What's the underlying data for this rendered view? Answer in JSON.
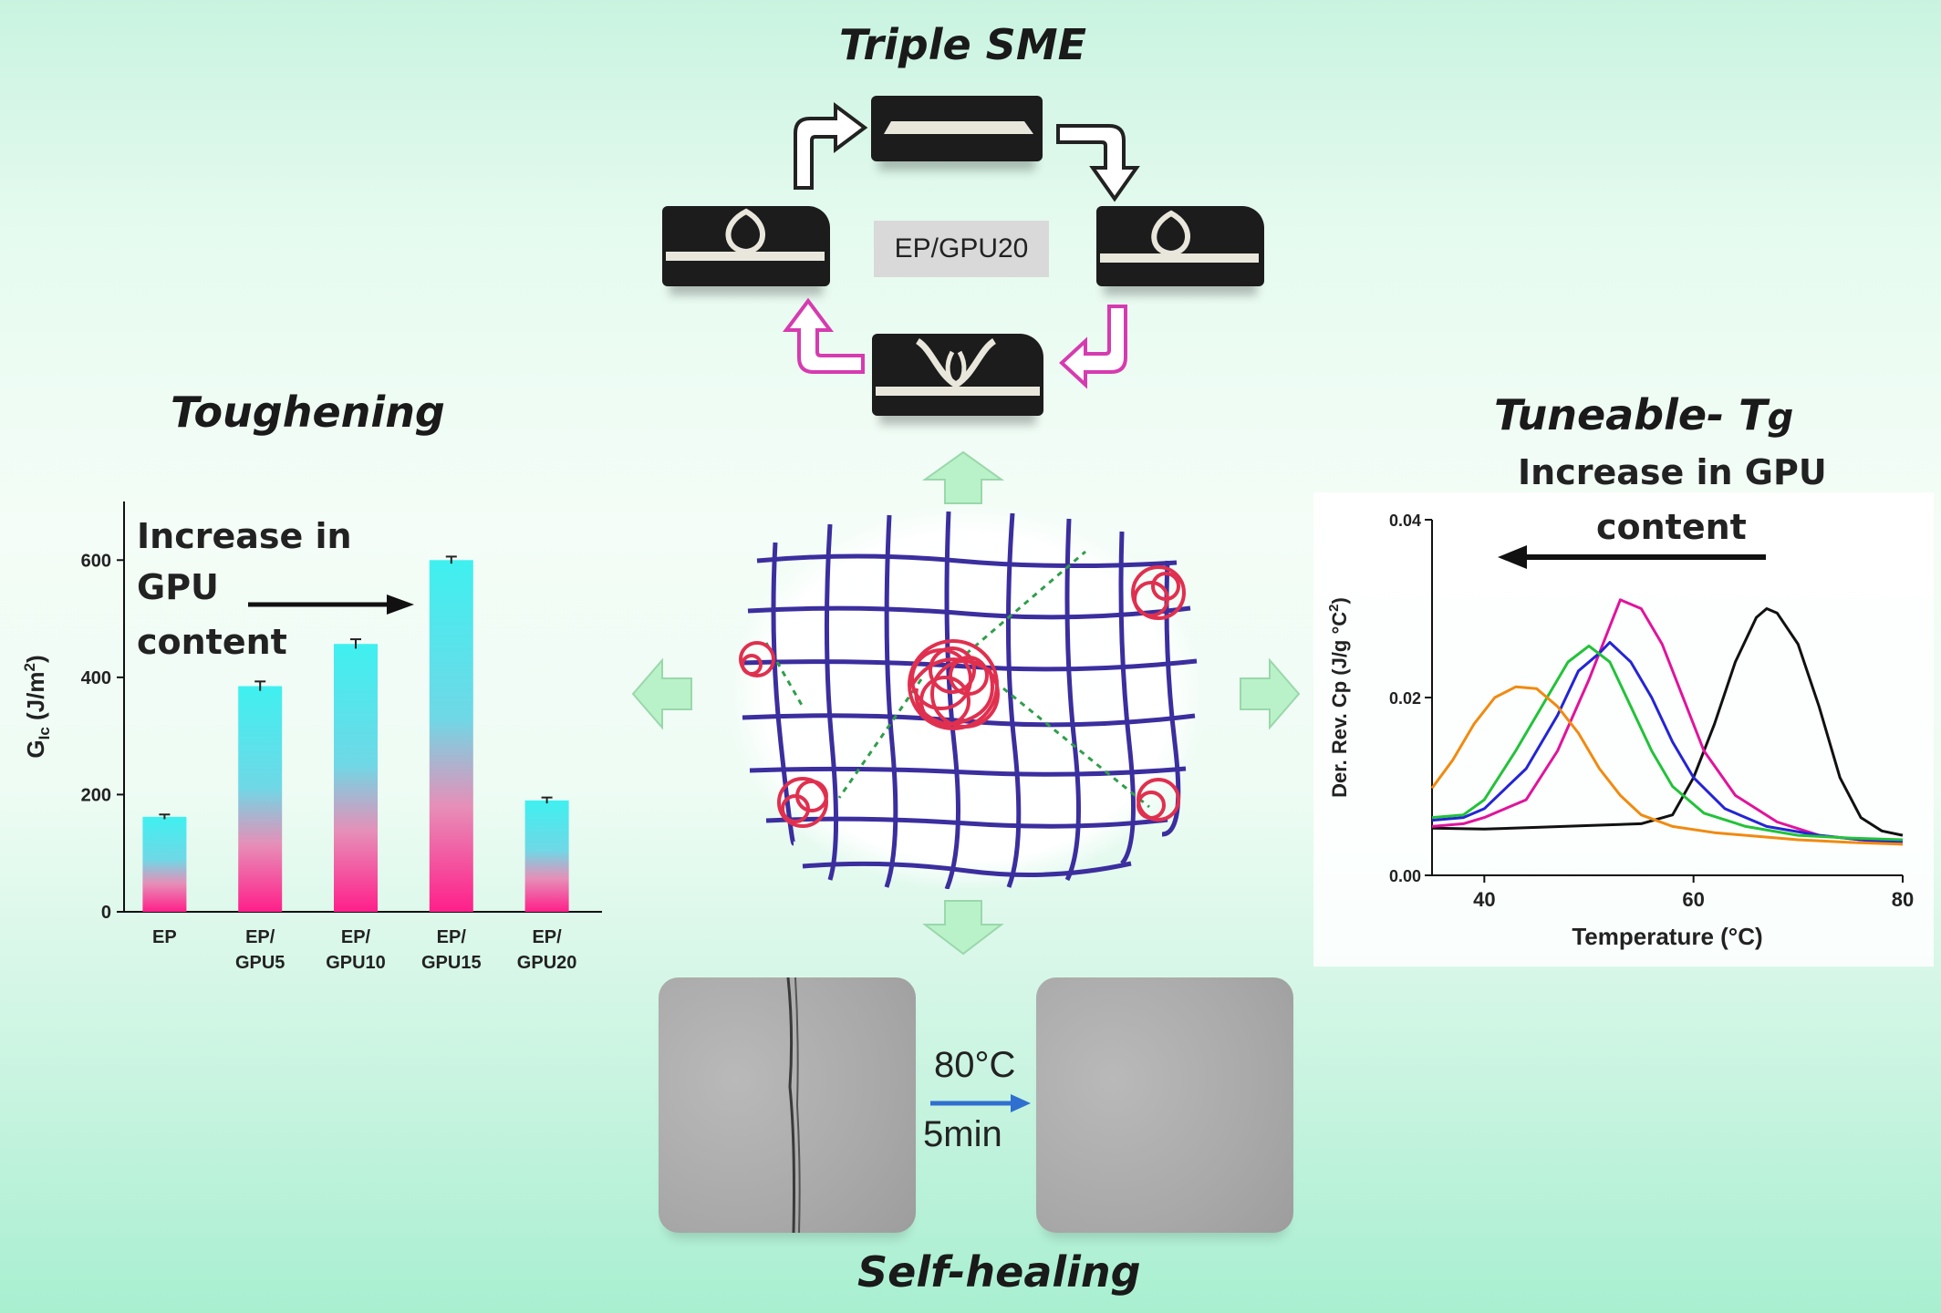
{
  "titles": {
    "top": "Triple SME",
    "left": "Toughening",
    "right_main": "Tuneable- T",
    "right_sub": "g",
    "bottom": "Self-healing"
  },
  "sme": {
    "center_tag": "EP/GPU20"
  },
  "self_healing": {
    "temp": "80°C",
    "time": "5min"
  },
  "toughening_note": {
    "line1": "Increase in",
    "line2": "GPU",
    "line3": "content"
  },
  "tg_note": {
    "line1": "Increase in GPU",
    "line2": "content"
  },
  "colors": {
    "bar_top": "#3ff0f0",
    "bar_bottom": "#ff1f8a",
    "network": "#3b2e9e",
    "coil": "#e0304f",
    "arrow_green": "#b9f2c8"
  },
  "chart_data": [
    {
      "type": "bar",
      "categories": [
        "EP",
        "EP/ GPU5",
        "EP/ GPU10",
        "EP/ GPU15",
        "EP/ GPU20"
      ],
      "category_lines": [
        [
          "EP"
        ],
        [
          "EP/",
          "GPU5"
        ],
        [
          "EP/",
          "GPU10"
        ],
        [
          "EP/",
          "GPU15"
        ],
        [
          "EP/",
          "GPU20"
        ]
      ],
      "values": [
        162,
        385,
        457,
        600,
        190
      ],
      "errors": [
        4,
        8,
        8,
        6,
        5
      ],
      "ylabel": "G",
      "ylabel_sub": "Ic",
      "ylabel_unit": " (J/m",
      "ylabel_sup": "2",
      "ylabel_end": ")",
      "ylim": [
        0,
        700
      ],
      "yticks": [
        "0",
        "200",
        "400",
        "600"
      ],
      "ytick_values": [
        0,
        200,
        400,
        600
      ]
    },
    {
      "type": "line",
      "xlabel": "Temperature (°C)",
      "ylabel": "Der. Rev. Cp (J/g °C",
      "ylabel_sup": "2",
      "ylabel_end": ")",
      "xlim": [
        35,
        80
      ],
      "ylim": [
        0.0,
        0.04
      ],
      "xticks": [
        "40",
        "60",
        "80"
      ],
      "xtick_values": [
        40,
        60,
        80
      ],
      "yticks": [
        "0.00",
        "0.02",
        "0.04"
      ],
      "ytick_values": [
        0.0,
        0.02,
        0.04
      ],
      "series": [
        {
          "color": "#111111",
          "x": [
            35,
            40,
            45,
            50,
            55,
            58,
            60,
            62,
            64,
            66,
            67,
            68,
            70,
            72,
            74,
            76,
            78,
            80
          ],
          "y": [
            0.0053,
            0.0052,
            0.0054,
            0.0056,
            0.0058,
            0.0068,
            0.011,
            0.017,
            0.024,
            0.029,
            0.03,
            0.0295,
            0.026,
            0.019,
            0.011,
            0.0065,
            0.005,
            0.0045
          ]
        },
        {
          "color": "#e1139c",
          "x": [
            35,
            38,
            40,
            44,
            47,
            50,
            52,
            53,
            55,
            57,
            59,
            61,
            64,
            68,
            72,
            76,
            80
          ],
          "y": [
            0.0055,
            0.0058,
            0.0065,
            0.0085,
            0.014,
            0.022,
            0.028,
            0.031,
            0.03,
            0.026,
            0.02,
            0.014,
            0.009,
            0.006,
            0.0045,
            0.004,
            0.0035
          ]
        },
        {
          "color": "#2424d6",
          "x": [
            35,
            38,
            40,
            44,
            47,
            49,
            51,
            52,
            54,
            56,
            58,
            60,
            63,
            67,
            72,
            76,
            80
          ],
          "y": [
            0.0062,
            0.0065,
            0.0075,
            0.012,
            0.018,
            0.023,
            0.025,
            0.0262,
            0.024,
            0.02,
            0.015,
            0.011,
            0.0075,
            0.0055,
            0.0045,
            0.004,
            0.0038
          ]
        },
        {
          "color": "#23c23a",
          "x": [
            35,
            38,
            40,
            43,
            46,
            48,
            50,
            52,
            54,
            56,
            58,
            61,
            65,
            70,
            75,
            80
          ],
          "y": [
            0.0065,
            0.0068,
            0.0085,
            0.014,
            0.02,
            0.024,
            0.0258,
            0.024,
            0.019,
            0.014,
            0.01,
            0.007,
            0.0055,
            0.0045,
            0.0042,
            0.004
          ]
        },
        {
          "color": "#f18a10",
          "x": [
            35,
            37,
            39,
            41,
            43,
            45,
            47,
            49,
            51,
            53,
            55,
            58,
            62,
            66,
            70,
            75,
            80
          ],
          "y": [
            0.0098,
            0.013,
            0.017,
            0.02,
            0.0212,
            0.021,
            0.019,
            0.016,
            0.012,
            0.009,
            0.0068,
            0.0055,
            0.0048,
            0.0044,
            0.004,
            0.0037,
            0.0035
          ]
        }
      ]
    }
  ]
}
